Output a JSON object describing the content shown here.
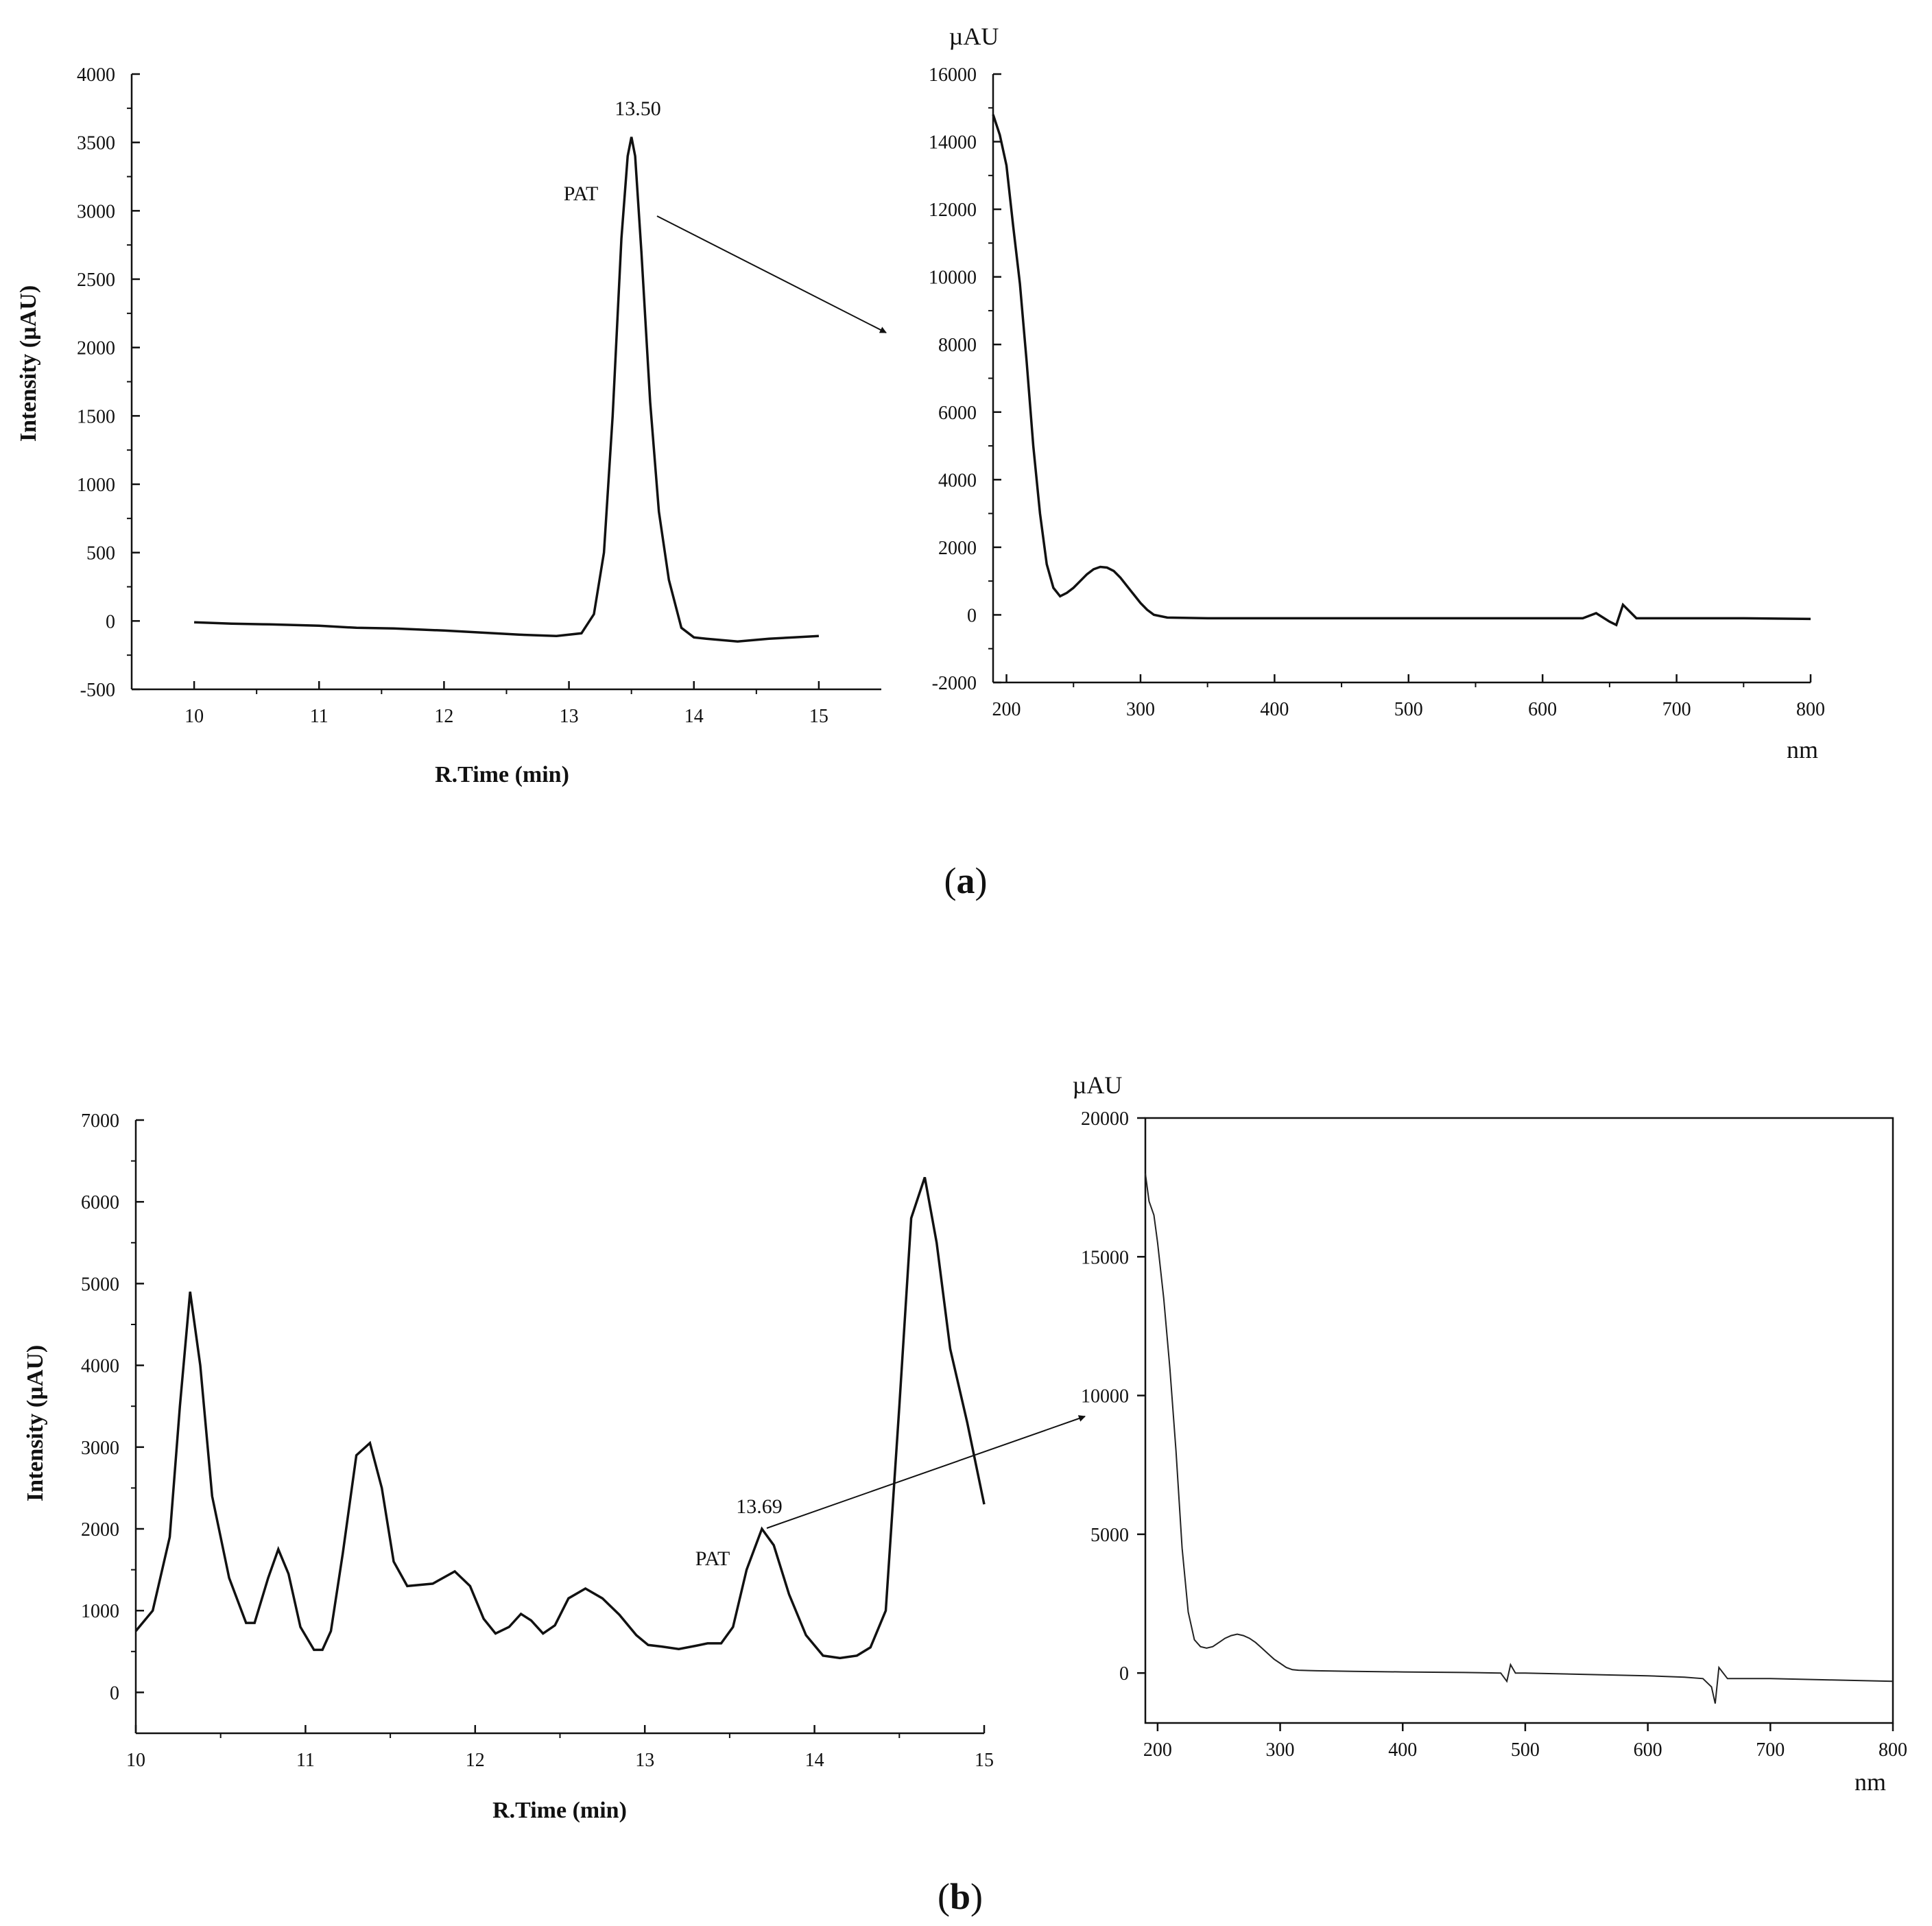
{
  "figure": {
    "panel_labels": [
      "(a)",
      "(b)"
    ],
    "panel_label_parts": [
      {
        "open": "(",
        "letter": "a",
        "close": ")"
      },
      {
        "open": "(",
        "letter": "b",
        "close": ")"
      }
    ]
  },
  "chart_data": [
    {
      "id": "a-chromatogram",
      "type": "line",
      "xlabel": "R.Time (min)",
      "ylabel": "Intensity (µAU)",
      "xlim": [
        9.5,
        15.5
      ],
      "ylim": [
        -500,
        4000
      ],
      "xticks": [
        10,
        11,
        12,
        13,
        14,
        15
      ],
      "yticks": [
        -500,
        0,
        500,
        1000,
        1500,
        2000,
        2500,
        3000,
        3500,
        4000
      ],
      "grid": false,
      "series": [
        {
          "x": [
            10.0,
            10.3,
            10.6,
            11.0,
            11.3,
            11.6,
            12.0,
            12.3,
            12.6,
            12.9,
            13.1,
            13.2,
            13.28,
            13.35,
            13.42,
            13.47,
            13.5,
            13.53,
            13.58,
            13.65,
            13.72,
            13.8,
            13.9,
            14.0,
            14.1,
            14.35,
            14.6,
            14.8,
            15.0
          ],
          "y": [
            -10,
            -20,
            -25,
            -35,
            -50,
            -55,
            -70,
            -85,
            -100,
            -110,
            -90,
            50,
            500,
            1500,
            2800,
            3400,
            3540,
            3400,
            2700,
            1600,
            800,
            300,
            -50,
            -120,
            -130,
            -150,
            -130,
            -120,
            -110
          ]
        }
      ],
      "annotations": [
        {
          "text": "13.50",
          "x": 13.5,
          "y": 3540
        },
        {
          "text": "PAT"
        }
      ]
    },
    {
      "id": "a-spectrum",
      "type": "line",
      "xlim": [
        190,
        800
      ],
      "ylim": [
        -2000,
        16000
      ],
      "xticks": [
        200,
        300,
        400,
        500,
        600,
        700,
        800
      ],
      "yticks": [
        -2000,
        0,
        2000,
        4000,
        6000,
        8000,
        10000,
        12000,
        14000,
        16000
      ],
      "x_unit": "nm",
      "y_unit": "µAU",
      "grid": false,
      "series": [
        {
          "x": [
            190,
            195,
            200,
            205,
            210,
            215,
            220,
            225,
            230,
            235,
            240,
            245,
            250,
            255,
            260,
            265,
            270,
            275,
            280,
            285,
            290,
            295,
            300,
            305,
            310,
            320,
            350,
            400,
            450,
            500,
            550,
            600,
            630,
            640,
            650,
            655,
            660,
            670,
            700,
            750,
            800
          ],
          "y": [
            14800,
            14200,
            13300,
            11500,
            9800,
            7500,
            5000,
            3000,
            1500,
            800,
            550,
            650,
            800,
            1000,
            1200,
            1350,
            1420,
            1400,
            1300,
            1100,
            850,
            600,
            350,
            150,
            0,
            -80,
            -100,
            -100,
            -100,
            -100,
            -100,
            -100,
            -100,
            50,
            -200,
            -300,
            300,
            -100,
            -100,
            -100,
            -120
          ]
        }
      ]
    },
    {
      "id": "b-chromatogram",
      "type": "line",
      "xlabel": "R.Time (min)",
      "ylabel": "Intensity (µAU)",
      "xlim": [
        10,
        15
      ],
      "ylim": [
        -500,
        7000
      ],
      "xticks": [
        10,
        11,
        12,
        13,
        14,
        15
      ],
      "yticks": [
        0,
        1000,
        2000,
        3000,
        4000,
        5000,
        6000,
        7000
      ],
      "grid": false,
      "series": [
        {
          "x": [
            10.0,
            10.1,
            10.2,
            10.26,
            10.32,
            10.38,
            10.45,
            10.55,
            10.65,
            10.7,
            10.78,
            10.84,
            10.9,
            10.97,
            11.05,
            11.1,
            11.15,
            11.22,
            11.3,
            11.38,
            11.45,
            11.52,
            11.6,
            11.75,
            11.88,
            11.97,
            12.05,
            12.12,
            12.2,
            12.27,
            12.33,
            12.4,
            12.47,
            12.55,
            12.65,
            12.75,
            12.85,
            12.95,
            13.02,
            13.1,
            13.2,
            13.3,
            13.37,
            13.45,
            13.52,
            13.6,
            13.69,
            13.76,
            13.85,
            13.95,
            14.05,
            14.15,
            14.25,
            14.33,
            14.42,
            14.5,
            14.57,
            14.65,
            14.72,
            14.8,
            14.9,
            15.0
          ],
          "y": [
            750,
            1000,
            1900,
            3500,
            4900,
            4000,
            2400,
            1400,
            850,
            850,
            1400,
            1750,
            1450,
            800,
            520,
            520,
            750,
            1700,
            2900,
            3050,
            2500,
            1600,
            1300,
            1330,
            1480,
            1300,
            900,
            720,
            800,
            960,
            880,
            720,
            820,
            1150,
            1270,
            1150,
            950,
            700,
            580,
            560,
            530,
            570,
            600,
            600,
            800,
            1500,
            2000,
            1800,
            1200,
            700,
            450,
            420,
            450,
            550,
            1000,
            3500,
            5800,
            6300,
            5500,
            4200,
            3300,
            2300
          ]
        }
      ],
      "annotations": [
        {
          "text": "13.69",
          "x": 13.69,
          "y": 2000
        },
        {
          "text": "PAT"
        }
      ]
    },
    {
      "id": "b-spectrum",
      "type": "line",
      "xlim": [
        190,
        800
      ],
      "ylim": [
        -1800,
        20000
      ],
      "xticks": [
        200,
        300,
        400,
        500,
        600,
        700,
        800
      ],
      "yticks": [
        0,
        5000,
        10000,
        15000,
        20000
      ],
      "x_unit": "nm",
      "y_unit": "µAU",
      "grid": false,
      "series": [
        {
          "x": [
            190,
            193,
            197,
            200,
            205,
            210,
            215,
            220,
            225,
            230,
            235,
            240,
            245,
            250,
            255,
            260,
            265,
            270,
            275,
            280,
            285,
            290,
            295,
            300,
            305,
            310,
            315,
            330,
            360,
            400,
            450,
            480,
            485,
            488,
            492,
            500,
            550,
            600,
            630,
            645,
            652,
            655,
            658,
            665,
            700,
            750,
            800
          ],
          "y": [
            18000,
            17000,
            16500,
            15500,
            13500,
            11000,
            8000,
            4500,
            2200,
            1200,
            950,
            900,
            950,
            1100,
            1250,
            1350,
            1400,
            1350,
            1250,
            1100,
            900,
            700,
            500,
            350,
            200,
            120,
            100,
            80,
            60,
            40,
            20,
            0,
            -300,
            300,
            0,
            0,
            -50,
            -100,
            -150,
            -200,
            -500,
            -1100,
            200,
            -200,
            -200,
            -250,
            -300
          ]
        }
      ]
    }
  ]
}
